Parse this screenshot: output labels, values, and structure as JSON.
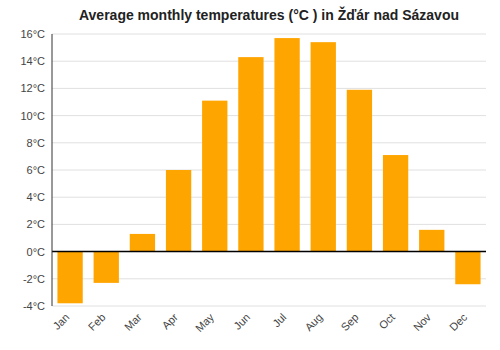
{
  "chart_data": {
    "type": "bar",
    "title": "Average monthly temperatures (°C ) in Žďár nad Sázavou",
    "categories": [
      "Jan",
      "Feb",
      "Mar",
      "Apr",
      "May",
      "Jun",
      "Jul",
      "Aug",
      "Sep",
      "Oct",
      "Nov",
      "Dec"
    ],
    "values": [
      -3.8,
      -2.3,
      1.3,
      6.0,
      11.1,
      14.3,
      15.7,
      15.4,
      11.9,
      7.1,
      1.6,
      -2.4
    ],
    "color": "#FFA500",
    "ylim": [
      -4,
      16
    ],
    "yticks": [
      {
        "value": -4,
        "label": "-4°C"
      },
      {
        "value": -2,
        "label": "-2°C"
      },
      {
        "value": 0,
        "label": "0°C"
      },
      {
        "value": 2,
        "label": "2°C"
      },
      {
        "value": 4,
        "label": "4°C"
      },
      {
        "value": 6,
        "label": "6°C"
      },
      {
        "value": 8,
        "label": "8°C"
      },
      {
        "value": 10,
        "label": "10°C"
      },
      {
        "value": 12,
        "label": "12°C"
      },
      {
        "value": 14,
        "label": "14°C"
      },
      {
        "value": 16,
        "label": "16°C"
      }
    ],
    "grid": true
  }
}
